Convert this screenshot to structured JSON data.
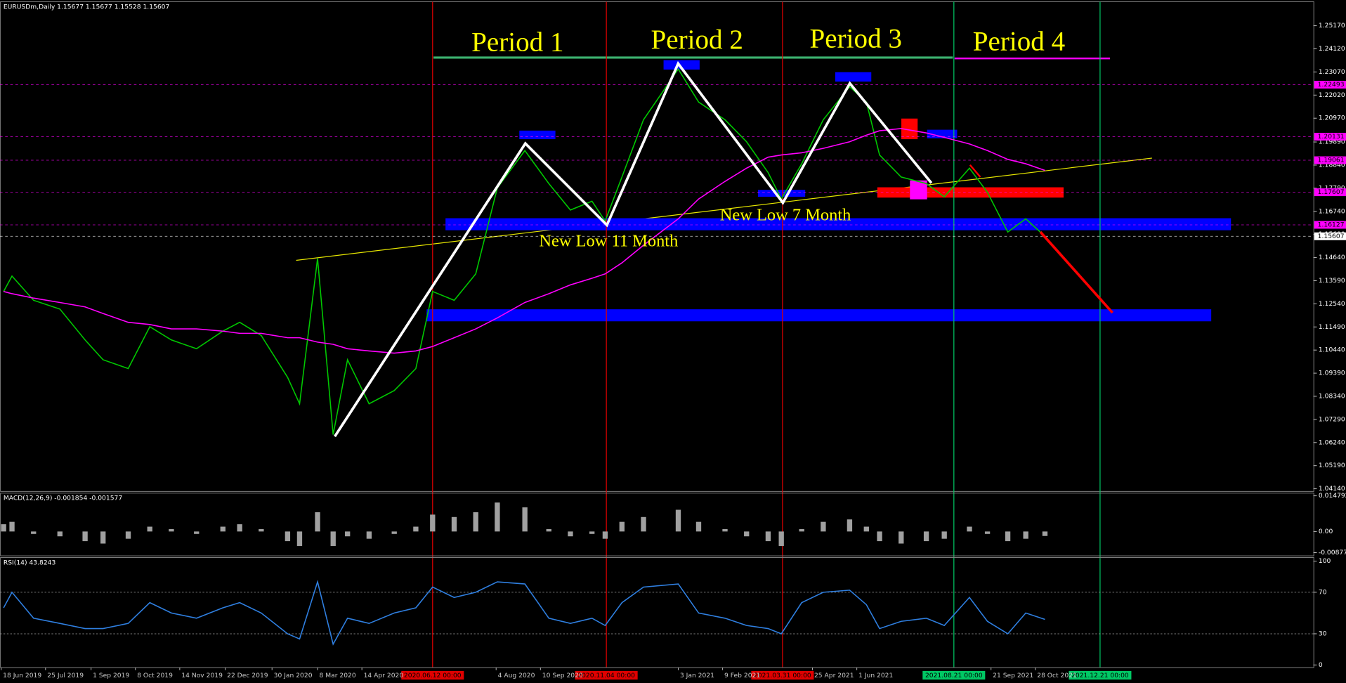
{
  "chart_data": [
    {
      "type": "line",
      "title": "EURUSDm,Daily  1.15677 1.15677 1.15528 1.15607",
      "annotations": [
        "Period 1",
        "Period 2",
        "Period 3",
        "Period 4",
        "New Low 11 Month",
        "New Low 7 Month"
      ],
      "x": [
        "2019-06-20",
        "2019-06-27",
        "2019-07-15",
        "2019-08-06",
        "2019-08-27",
        "2019-09-11",
        "2019-10-02",
        "2019-10-20",
        "2019-11-07",
        "2019-11-28",
        "2019-12-20",
        "2020-01-03",
        "2020-01-21",
        "2020-02-12",
        "2020-02-22",
        "2020-03-08",
        "2020-03-21",
        "2020-04-02",
        "2020-04-20",
        "2020-05-11",
        "2020-05-29",
        "2020-06-12",
        "2020-06-30",
        "2020-07-18",
        "2020-08-05",
        "2020-08-28",
        "2020-09-17",
        "2020-10-05",
        "2020-10-23",
        "2020-11-03",
        "2020-11-17",
        "2020-12-05",
        "2021-01-03",
        "2021-01-20",
        "2021-02-11",
        "2021-03-01",
        "2021-03-19",
        "2021-03-30",
        "2021-04-16",
        "2021-05-04",
        "2021-05-26",
        "2021-06-09",
        "2021-06-20",
        "2021-07-08",
        "2021-07-29",
        "2021-08-13",
        "2021-09-03",
        "2021-09-18",
        "2021-10-05",
        "2021-10-20",
        "2021-11-05"
      ],
      "series": [
        {
          "color": "#00c800",
          "values": [
            1.131,
            1.138,
            1.127,
            1.123,
            1.109,
            1.1,
            1.096,
            1.115,
            1.109,
            1.105,
            1.113,
            1.117,
            1.111,
            1.092,
            1.08,
            1.146,
            1.066,
            1.1,
            1.08,
            1.086,
            1.096,
            1.131,
            1.127,
            1.139,
            1.178,
            1.195,
            1.18,
            1.168,
            1.172,
            1.163,
            1.183,
            1.209,
            1.232,
            1.217,
            1.209,
            1.199,
            1.185,
            1.173,
            1.189,
            1.209,
            1.224,
            1.217,
            1.193,
            1.183,
            1.18,
            1.174,
            1.187,
            1.176,
            1.158,
            1.164,
            1.15607
          ]
        },
        {
          "color": "#ff00ff",
          "values": [
            1.131,
            1.13,
            1.128,
            1.126,
            1.124,
            1.121,
            1.117,
            1.116,
            1.114,
            1.114,
            1.113,
            1.112,
            1.112,
            1.11,
            1.11,
            1.108,
            1.107,
            1.105,
            1.104,
            1.103,
            1.104,
            1.106,
            1.11,
            1.114,
            1.119,
            1.126,
            1.13,
            1.134,
            1.137,
            1.139,
            1.144,
            1.152,
            1.164,
            1.173,
            1.181,
            1.187,
            1.192,
            1.193,
            1.194,
            1.196,
            1.199,
            1.202,
            1.204,
            1.205,
            1.203,
            1.201,
            1.198,
            1.195,
            1.191,
            1.189,
            1.186
          ]
        }
      ],
      "xlim": [
        "2019-06-17",
        "2022-06-17"
      ],
      "ylim": [
        1.0402,
        1.2626
      ],
      "yticks": [
        {
          "value": 1.2517,
          "label": "1.25170"
        },
        {
          "value": 1.2412,
          "label": "1.24120"
        },
        {
          "value": 1.2307,
          "label": "1.23070"
        },
        {
          "value": 1.2202,
          "label": "1.22020"
        },
        {
          "value": 1.2097,
          "label": "1.20970"
        },
        {
          "value": 1.1989,
          "label": "1.19890"
        },
        {
          "value": 1.1884,
          "label": "1.18840"
        },
        {
          "value": 1.1779,
          "label": "1.17790"
        },
        {
          "value": 1.1674,
          "label": "1.16740"
        },
        {
          "value": 1.1569,
          "label": "1.15690"
        },
        {
          "value": 1.1464,
          "label": "1.14640"
        },
        {
          "value": 1.1359,
          "label": "1.13590"
        },
        {
          "value": 1.1254,
          "label": "1.12540"
        },
        {
          "value": 1.1149,
          "label": "1.11490"
        },
        {
          "value": 1.1044,
          "label": "1.10440"
        },
        {
          "value": 1.0939,
          "label": "1.09390"
        },
        {
          "value": 1.0834,
          "label": "1.08340"
        },
        {
          "value": 1.0729,
          "label": "1.07290"
        },
        {
          "value": 1.0624,
          "label": "1.06240"
        },
        {
          "value": 1.0519,
          "label": "1.05190"
        },
        {
          "value": 1.0414,
          "label": "1.04140"
        }
      ],
      "xticks": [
        {
          "value": "2019-06-18",
          "label": "18 Jun 2019"
        },
        {
          "value": "2019-07-25",
          "label": "25 Jul 2019"
        },
        {
          "value": "2019-09-01",
          "label": "1 Sep 2019"
        },
        {
          "value": "2019-10-08",
          "label": "8 Oct 2019"
        },
        {
          "value": "2019-11-14",
          "label": "14 Nov 2019"
        },
        {
          "value": "2019-12-22",
          "label": "22 Dec 2019"
        },
        {
          "value": "2020-01-30",
          "label": "30 Jan 2020"
        },
        {
          "value": "2020-03-08",
          "label": "8 Mar 2020"
        },
        {
          "value": "2020-04-14",
          "label": "14 Apr 2020"
        },
        {
          "value": "2020-08-04",
          "label": "4 Aug 2020"
        },
        {
          "value": "2020-09-10",
          "label": "10 Sep 2020"
        },
        {
          "value": "2021-01-03",
          "label": "3 Jan 2021"
        },
        {
          "value": "2021-02-09",
          "label": "9 Feb 2021"
        },
        {
          "value": "2021-04-25",
          "label": "25 Apr 2021"
        },
        {
          "value": "2021-06-01",
          "label": "1 Jun 2021"
        },
        {
          "value": "2021-09-21",
          "label": "21 Sep 2021"
        },
        {
          "value": "2021-10-28",
          "label": "28 Oct 2021"
        }
      ],
      "vlines": [
        {
          "value": "2020-06-12",
          "label": "2020.06.12 00:00",
          "color": "#e00000"
        },
        {
          "value": "2020-11-04",
          "label": "2020.11.04 00:00",
          "color": "#e00000"
        },
        {
          "value": "2021-03-31",
          "label": "2021.03.31 00:00",
          "color": "#e00000"
        },
        {
          "value": "2021-08-21",
          "label": "2021.08.21 00:00",
          "color": "#00c864"
        },
        {
          "value": "2021-12-21",
          "label": "2021.12.21 00:00",
          "color": "#00c864"
        }
      ],
      "price_levels": [
        {
          "value": 1.22493,
          "label": "1.22493",
          "color": "#ff00ff"
        },
        {
          "value": 1.20131,
          "label": "1.20131",
          "color": "#ff00ff"
        },
        {
          "value": 1.19061,
          "label": "1.19061",
          "color": "#ff00ff"
        },
        {
          "value": 1.17607,
          "label": "1.17607",
          "color": "#ff00ff"
        },
        {
          "value": 1.16127,
          "label": "1.16127",
          "color": "#ff00ff"
        },
        {
          "value": 1.15607,
          "label": "1.15607",
          "color": "#ffffff"
        }
      ]
    },
    {
      "type": "bar",
      "title": "MACD(12,26,9) -0.001854 -0.001577",
      "color": "#a0a0a0",
      "x": [
        "2019-06-20",
        "2019-06-27",
        "2019-07-15",
        "2019-08-06",
        "2019-08-27",
        "2019-09-11",
        "2019-10-02",
        "2019-10-20",
        "2019-11-07",
        "2019-11-28",
        "2019-12-20",
        "2020-01-03",
        "2020-01-21",
        "2020-02-12",
        "2020-02-22",
        "2020-03-08",
        "2020-03-21",
        "2020-04-02",
        "2020-04-20",
        "2020-05-11",
        "2020-05-29",
        "2020-06-12",
        "2020-06-30",
        "2020-07-18",
        "2020-08-05",
        "2020-08-28",
        "2020-09-17",
        "2020-10-05",
        "2020-10-23",
        "2020-11-03",
        "2020-11-17",
        "2020-12-05",
        "2021-01-03",
        "2021-01-20",
        "2021-02-11",
        "2021-03-01",
        "2021-03-19",
        "2021-03-30",
        "2021-04-16",
        "2021-05-04",
        "2021-05-26",
        "2021-06-09",
        "2021-06-20",
        "2021-07-08",
        "2021-07-29",
        "2021-08-13",
        "2021-09-03",
        "2021-09-18",
        "2021-10-05",
        "2021-10-20",
        "2021-11-05"
      ],
      "values": [
        0.003,
        0.004,
        -0.001,
        -0.002,
        -0.004,
        -0.005,
        -0.003,
        0.002,
        0.001,
        -0.001,
        0.002,
        0.003,
        0.001,
        -0.004,
        -0.006,
        0.008,
        -0.006,
        -0.002,
        -0.003,
        -0.001,
        0.002,
        0.007,
        0.006,
        0.008,
        0.012,
        0.01,
        0.001,
        -0.002,
        -0.001,
        -0.003,
        0.004,
        0.006,
        0.009,
        0.004,
        0.001,
        -0.002,
        -0.004,
        -0.006,
        0.001,
        0.004,
        0.005,
        0.002,
        -0.004,
        -0.005,
        -0.004,
        -0.003,
        0.002,
        -0.001,
        -0.004,
        -0.003,
        -0.001854
      ],
      "xlim": [
        "2019-06-17",
        "2022-06-17"
      ],
      "ylim": [
        -0.0101,
        0.0159
      ],
      "yticks": [
        0.014792,
        {
          "value": 0,
          "label": "0.00"
        },
        -0.008775
      ]
    },
    {
      "type": "line",
      "title": "RSI(14) 43.8243",
      "x": [
        "2019-06-20",
        "2019-06-27",
        "2019-07-15",
        "2019-08-06",
        "2019-08-27",
        "2019-09-11",
        "2019-10-02",
        "2019-10-20",
        "2019-11-07",
        "2019-11-28",
        "2019-12-20",
        "2020-01-03",
        "2020-01-21",
        "2020-02-12",
        "2020-02-22",
        "2020-03-08",
        "2020-03-21",
        "2020-04-02",
        "2020-04-20",
        "2020-05-11",
        "2020-05-29",
        "2020-06-12",
        "2020-06-30",
        "2020-07-18",
        "2020-08-05",
        "2020-08-28",
        "2020-09-17",
        "2020-10-05",
        "2020-10-23",
        "2020-11-03",
        "2020-11-17",
        "2020-12-05",
        "2021-01-03",
        "2021-01-20",
        "2021-02-11",
        "2021-03-01",
        "2021-03-19",
        "2021-03-30",
        "2021-04-16",
        "2021-05-04",
        "2021-05-26",
        "2021-06-09",
        "2021-06-20",
        "2021-07-08",
        "2021-07-29",
        "2021-08-13",
        "2021-09-03",
        "2021-09-18",
        "2021-10-05",
        "2021-10-20",
        "2021-11-05"
      ],
      "series": [
        {
          "color": "#2f7fe0",
          "values": [
            55,
            70,
            45,
            40,
            35,
            35,
            40,
            60,
            50,
            45,
            55,
            60,
            50,
            30,
            25,
            80,
            20,
            45,
            40,
            50,
            55,
            75,
            65,
            70,
            80,
            78,
            45,
            40,
            45,
            38,
            60,
            75,
            78,
            50,
            45,
            38,
            35,
            30,
            60,
            70,
            72,
            58,
            35,
            42,
            45,
            38,
            65,
            42,
            30,
            50,
            43.8243
          ]
        }
      ],
      "xlim": [
        "2019-06-17",
        "2022-06-17"
      ],
      "ylim": [
        -2.5,
        103.4
      ],
      "yticks": [
        0,
        30,
        70,
        100
      ],
      "levels": [
        30,
        70
      ]
    }
  ]
}
